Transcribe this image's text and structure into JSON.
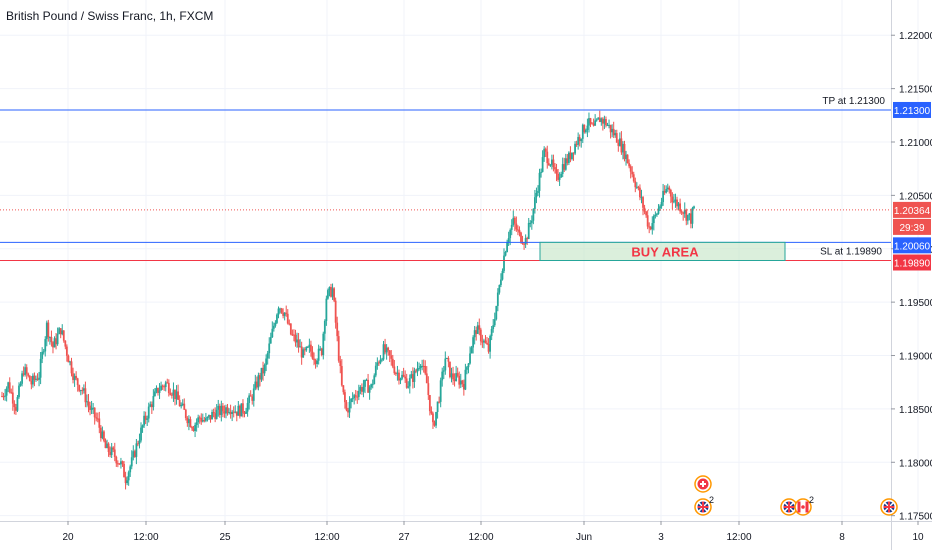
{
  "header": {
    "title": "British Pound / Swiss Franc, 1h, FXCM"
  },
  "colors": {
    "up": "#26a69a",
    "down": "#ef5350",
    "tp_line": "#2962ff",
    "entry_line": "#2962ff",
    "sl_line": "#f23645",
    "grid": "#f0f3fa",
    "axis_text": "#131722",
    "price_line": "#ef5350"
  },
  "annotations": {
    "tp_label": "TP at 1.21300",
    "sl_label": "SL at 1.19890",
    "buy_area_label": "BUY AREA"
  },
  "price_tags": {
    "tp": "1.21300",
    "last": "1.20364",
    "countdown": "29:39",
    "entry": "1.20060",
    "sl": "1.19890"
  },
  "events": [
    {
      "icon": "swiss-flag-icon",
      "count": ""
    },
    {
      "icon": "uk-flag-icon",
      "count": "2"
    },
    {
      "icon": "uk-flag-icon",
      "count": ""
    },
    {
      "icon": "canada-flag-icon",
      "count": "2"
    },
    {
      "icon": "uk-flag-icon",
      "count": ""
    }
  ],
  "chart_data": {
    "type": "candlestick",
    "title": "British Pound / Swiss Franc, 1h, FXCM",
    "y_ticks": [
      "1.22000",
      "1.21500",
      "1.21000",
      "1.20500",
      "1.20000",
      "1.19500",
      "1.19000",
      "1.18500",
      "1.18000",
      "1.17500"
    ],
    "x_ticks": [
      "20",
      "12:00",
      "25",
      "12:00",
      "27",
      "12:00",
      "Jun",
      "3",
      "12:00",
      "8",
      "10"
    ],
    "ylim": [
      1.1745,
      1.2233
    ],
    "levels": {
      "tp": 1.213,
      "entry": 1.2006,
      "sl": 1.1989,
      "last": 1.20364
    },
    "buy_area": {
      "from": 1.1989,
      "to": 1.2006
    },
    "candle_anchors": [
      [
        0,
        1.1862
      ],
      [
        4,
        1.1873
      ],
      [
        9,
        1.1852
      ],
      [
        14,
        1.1887
      ],
      [
        19,
        1.1874
      ],
      [
        24,
        1.1882
      ],
      [
        29,
        1.1928
      ],
      [
        33,
        1.1908
      ],
      [
        38,
        1.1925
      ],
      [
        42,
        1.1903
      ],
      [
        47,
        1.1878
      ],
      [
        52,
        1.1868
      ],
      [
        57,
        1.185
      ],
      [
        62,
        1.1838
      ],
      [
        67,
        1.1813
      ],
      [
        72,
        1.1808
      ],
      [
        77,
        1.1798
      ],
      [
        80,
        1.1785
      ],
      [
        84,
        1.18
      ],
      [
        88,
        1.182
      ],
      [
        92,
        1.1838
      ],
      [
        96,
        1.1853
      ],
      [
        101,
        1.1868
      ],
      [
        106,
        1.1874
      ],
      [
        111,
        1.1866
      ],
      [
        116,
        1.1852
      ],
      [
        120,
        1.1842
      ],
      [
        124,
        1.1834
      ],
      [
        128,
        1.1842
      ],
      [
        132,
        1.1838
      ],
      [
        137,
        1.1846
      ],
      [
        142,
        1.1848
      ],
      [
        147,
        1.1852
      ],
      [
        152,
        1.1848
      ],
      [
        157,
        1.185
      ],
      [
        162,
        1.1862
      ],
      [
        166,
        1.1878
      ],
      [
        170,
        1.1888
      ],
      [
        174,
        1.1915
      ],
      [
        179,
        1.1948
      ],
      [
        183,
        1.194
      ],
      [
        187,
        1.192
      ],
      [
        191,
        1.1912
      ],
      [
        195,
        1.19
      ],
      [
        199,
        1.1906
      ],
      [
        203,
        1.1898
      ],
      [
        207,
        1.1905
      ],
      [
        210,
        1.1955
      ],
      [
        214,
        1.1962
      ],
      [
        217,
        1.1915
      ],
      [
        220,
        1.187
      ],
      [
        223,
        1.1848
      ],
      [
        227,
        1.186
      ],
      [
        231,
        1.1868
      ],
      [
        235,
        1.1872
      ],
      [
        239,
        1.187
      ],
      [
        243,
        1.1893
      ],
      [
        247,
        1.1905
      ],
      [
        251,
        1.1898
      ],
      [
        255,
        1.1885
      ],
      [
        259,
        1.188
      ],
      [
        263,
        1.1874
      ],
      [
        267,
        1.1882
      ],
      [
        271,
        1.1896
      ],
      [
        275,
        1.1874
      ],
      [
        279,
        1.1832
      ],
      [
        283,
        1.1862
      ],
      [
        287,
        1.1898
      ],
      [
        291,
        1.188
      ],
      [
        295,
        1.1878
      ],
      [
        299,
        1.1874
      ],
      [
        303,
        1.1905
      ],
      [
        307,
        1.1925
      ],
      [
        311,
        1.1915
      ],
      [
        315,
        1.1905
      ],
      [
        318,
        1.193
      ],
      [
        321,
        1.1955
      ],
      [
        324,
        1.1985
      ],
      [
        327,
        1.201
      ],
      [
        331,
        1.2025
      ],
      [
        335,
        1.2012
      ],
      [
        339,
        1.2008
      ],
      [
        343,
        1.203
      ],
      [
        347,
        1.206
      ],
      [
        351,
        1.209
      ],
      [
        355,
        1.2082
      ],
      [
        359,
        1.2065
      ],
      [
        363,
        1.2078
      ],
      [
        367,
        1.2085
      ],
      [
        371,
        1.2098
      ],
      [
        375,
        1.2108
      ],
      [
        379,
        1.2118
      ],
      [
        383,
        1.2112
      ],
      [
        387,
        1.2122
      ],
      [
        391,
        1.2118
      ],
      [
        395,
        1.211
      ],
      [
        399,
        1.2102
      ],
      [
        403,
        1.209
      ],
      [
        407,
        1.2075
      ],
      [
        411,
        1.2058
      ],
      [
        415,
        1.204
      ],
      [
        419,
        1.202
      ],
      [
        423,
        1.203
      ],
      [
        427,
        1.2045
      ],
      [
        431,
        1.2058
      ],
      [
        435,
        1.2045
      ],
      [
        439,
        1.204
      ],
      [
        443,
        1.2032
      ],
      [
        446,
        1.2028
      ],
      [
        448,
        1.2038
      ]
    ],
    "x_anchor_range": [
      0,
      448
    ]
  }
}
